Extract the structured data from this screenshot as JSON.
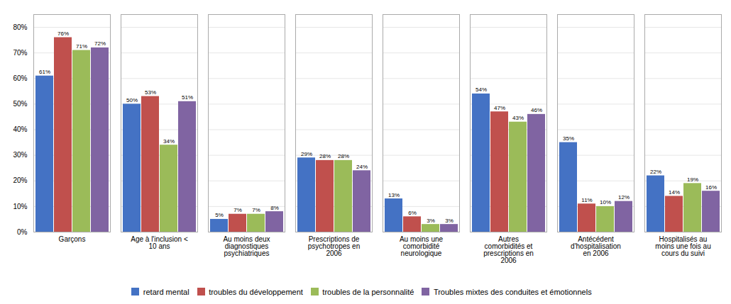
{
  "chart_data": {
    "type": "bar",
    "categories": [
      "Garçons",
      "Age à l'inclusion <\n10 ans",
      "Au moins deux\ndiagnostiques\npsychiatriques",
      "Prescriptions de\npsychotropes en\n2006",
      "Au moins une\ncomorbidité\nneurologique",
      "Autres\ncomorbidités et\nprescriptions en\n2006",
      "Antécédent\nd'hospitalisation\nen 2006",
      "Hospitalisés au\nmoins une fois au\ncours du suivi"
    ],
    "series": [
      {
        "name": "retard mental",
        "color": "#4472C4",
        "values": [
          61,
          50,
          5,
          29,
          13,
          54,
          35,
          22
        ],
        "value_labels": [
          "61%",
          "50%",
          "5%",
          "29%",
          "13%",
          "54%",
          "35%",
          "22%"
        ]
      },
      {
        "name": "troubles du développement",
        "color": "#C0504D",
        "values": [
          76,
          53,
          7,
          28,
          6,
          47,
          11,
          14
        ],
        "value_labels": [
          "76%",
          "53%",
          "7%",
          "28%",
          "6%",
          "47%",
          "11%",
          "14%"
        ]
      },
      {
        "name": "troubles de la personnalité",
        "color": "#9BBB59",
        "values": [
          71,
          34,
          7,
          28,
          3,
          43,
          10,
          19
        ],
        "value_labels": [
          "71%",
          "34%",
          "7%",
          "28%",
          "3%",
          "43%",
          "10%",
          "19%"
        ]
      },
      {
        "name": "Troubles mixtes des conduites et émotionnels",
        "color": "#8064A2",
        "values": [
          72,
          51,
          8,
          24,
          3,
          46,
          12,
          16
        ],
        "value_labels": [
          "72%",
          "51%",
          "8%",
          "24%",
          "3%",
          "46%",
          "12%",
          "16%"
        ]
      }
    ],
    "ylim": [
      0,
      85
    ],
    "yticks": [
      {
        "value": 0,
        "label": "0%"
      },
      {
        "value": 10,
        "label": "10%"
      },
      {
        "value": 20,
        "label": "20%"
      },
      {
        "value": 30,
        "label": "30%"
      },
      {
        "value": 40,
        "label": "40%"
      },
      {
        "value": 50,
        "label": "50%"
      },
      {
        "value": 60,
        "label": "60%"
      },
      {
        "value": 70,
        "label": "70%"
      },
      {
        "value": 80,
        "label": "80%"
      }
    ],
    "grid": true,
    "data_labels": true,
    "legend": "bottom"
  }
}
